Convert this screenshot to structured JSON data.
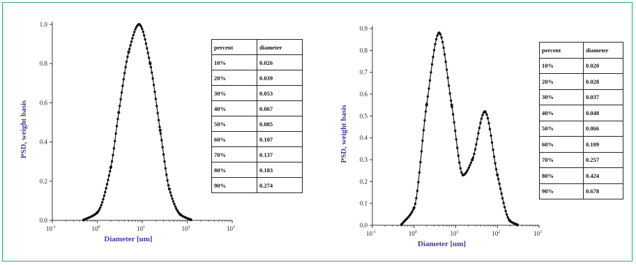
{
  "chart_data": [
    {
      "type": "line",
      "ylabel": "PSD, weight basis",
      "xlabel": "Diameter [um]",
      "xscale": "log",
      "xlim": [
        0.1,
        1000
      ],
      "ylim": [
        0.0,
        1.0
      ],
      "xticks": [
        {
          "base": "10",
          "exp": "-1"
        },
        {
          "base": "10",
          "exp": "0"
        },
        {
          "base": "10",
          "exp": "1"
        },
        {
          "base": "10",
          "exp": "2"
        },
        {
          "base": "10",
          "exp": "3"
        }
      ],
      "yticks": [
        "0.0",
        "0.2",
        "0.4",
        "0.6",
        "0.8",
        "1.0"
      ],
      "yvalues": [
        0.0,
        0.2,
        0.4,
        0.6,
        0.8,
        1.0
      ],
      "marker": "filled-circle",
      "series": [
        {
          "x": [
            0.5,
            1,
            2,
            3,
            5,
            8.5,
            15,
            25,
            40,
            70,
            120
          ],
          "y": [
            0.002,
            0.04,
            0.27,
            0.55,
            0.86,
            1.0,
            0.8,
            0.46,
            0.16,
            0.03,
            0.003
          ]
        }
      ],
      "table": {
        "headers": [
          "percent",
          "diameter"
        ],
        "rows": [
          [
            "10%",
            "0.026"
          ],
          [
            "20%",
            "0.039"
          ],
          [
            "30%",
            "0.053"
          ],
          [
            "40%",
            "0.067"
          ],
          [
            "50%",
            "0.085"
          ],
          [
            "60%",
            "0.107"
          ],
          [
            "70%",
            "0.137"
          ],
          [
            "80%",
            "0.183"
          ],
          [
            "90%",
            "0.274"
          ]
        ]
      }
    },
    {
      "type": "line",
      "ylabel": "PSD, weight basis",
      "xlabel": "Diameter [um]",
      "xscale": "log",
      "xlim": [
        0.1,
        1000
      ],
      "ylim": [
        0.0,
        0.9
      ],
      "xticks": [
        {
          "base": "10",
          "exp": "-1"
        },
        {
          "base": "10",
          "exp": "0"
        },
        {
          "base": "10",
          "exp": "1"
        },
        {
          "base": "10",
          "exp": "2"
        },
        {
          "base": "10",
          "exp": "3"
        }
      ],
      "yticks": [
        "0.0",
        "0.1",
        "0.2",
        "0.3",
        "0.4",
        "0.5",
        "0.6",
        "0.7",
        "0.8",
        "0.9"
      ],
      "yvalues": [
        0.0,
        0.1,
        0.2,
        0.3,
        0.4,
        0.5,
        0.6,
        0.7,
        0.8,
        0.9
      ],
      "marker": "filled-circle",
      "series": [
        {
          "x": [
            0.5,
            1,
            2,
            4,
            8,
            15,
            25,
            50,
            100,
            200,
            300
          ],
          "y": [
            0.003,
            0.08,
            0.55,
            0.88,
            0.55,
            0.23,
            0.3,
            0.52,
            0.23,
            0.02,
            0.002
          ]
        }
      ],
      "table": {
        "headers": [
          "percent",
          "diameter"
        ],
        "rows": [
          [
            "10%",
            "0.020"
          ],
          [
            "20%",
            "0.028"
          ],
          [
            "30%",
            "0.037"
          ],
          [
            "40%",
            "0.048"
          ],
          [
            "50%",
            "0.066"
          ],
          [
            "60%",
            "0.109"
          ],
          [
            "70%",
            "0.257"
          ],
          [
            "80%",
            "0.424"
          ],
          [
            "90%",
            "0.678"
          ]
        ]
      }
    }
  ]
}
